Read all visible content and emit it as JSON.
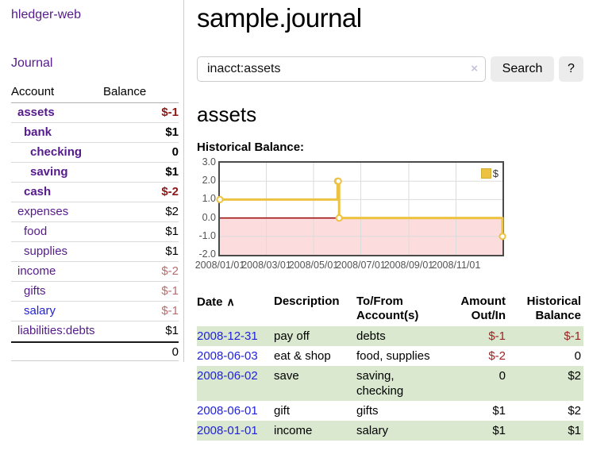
{
  "colors": {
    "accent_purple": "#551a8b",
    "link_blue": "#2222dd",
    "negative_strong": "#8b1717",
    "negative_faded": "#b56d6d",
    "row_green": "#d9e8ce",
    "series_yellow": "#edc240",
    "negative_region_pink": "#fcdcdc",
    "zero_line_red": "#990000"
  },
  "sidebar": {
    "brand": "hledger-web",
    "journal_link": "Journal",
    "accounts": {
      "col_account": "Account",
      "col_balance": "Balance",
      "rows": [
        {
          "name": "assets",
          "balance": "$-1",
          "indent": 1,
          "emph": true,
          "name_style": "purple",
          "bal_style": "neg"
        },
        {
          "name": "bank",
          "balance": "$1",
          "indent": 2,
          "emph": true,
          "name_style": "purple",
          "bal_style": "pos"
        },
        {
          "name": "checking",
          "balance": "0",
          "indent": 3,
          "emph": true,
          "name_style": "purple",
          "bal_style": "pos"
        },
        {
          "name": "saving",
          "balance": "$1",
          "indent": 3,
          "emph": true,
          "name_style": "purple",
          "bal_style": "pos"
        },
        {
          "name": "cash",
          "balance": "$-2",
          "indent": 2,
          "emph": true,
          "name_style": "purple",
          "bal_style": "neg"
        },
        {
          "name": "expenses",
          "balance": "$2",
          "indent": 1,
          "emph": false,
          "name_style": "purple",
          "bal_style": "pos"
        },
        {
          "name": "food",
          "balance": "$1",
          "indent": 2,
          "emph": false,
          "name_style": "purple",
          "bal_style": "pos"
        },
        {
          "name": "supplies",
          "balance": "$1",
          "indent": 2,
          "emph": false,
          "name_style": "purple",
          "bal_style": "pos"
        },
        {
          "name": "income",
          "balance": "$-2",
          "indent": 1,
          "emph": false,
          "name_style": "purple",
          "bal_style": "neg-faded"
        },
        {
          "name": "gifts",
          "balance": "$-1",
          "indent": 2,
          "emph": false,
          "name_style": "purple",
          "bal_style": "neg-faded"
        },
        {
          "name": "salary",
          "balance": "$-1",
          "indent": 2,
          "emph": false,
          "name_style": "blue",
          "bal_style": "neg-faded"
        },
        {
          "name": "liabilities:debts",
          "balance": "$1",
          "indent": 1,
          "emph": false,
          "name_style": "purple",
          "bal_style": "pos"
        }
      ],
      "total": "0"
    }
  },
  "main": {
    "title": "sample.journal",
    "search": {
      "value": "inacct:assets",
      "clear_icon": "×",
      "search_button": "Search",
      "help_button": "?"
    },
    "account_heading": "assets",
    "chart_heading": "Historical Balance:"
  },
  "chart_data": {
    "type": "line",
    "step": true,
    "title": "Historical Balance",
    "x": [
      "2008-01-01",
      "2008-06-01",
      "2008-06-02",
      "2008-06-03",
      "2008-12-31"
    ],
    "series": [
      {
        "name": "$",
        "values": [
          1,
          2,
          2,
          0,
          -1
        ],
        "color": "#edc240"
      }
    ],
    "xlim": [
      "2008-01-01",
      "2008-12-31"
    ],
    "ylim": [
      -2.0,
      3.0
    ],
    "yticks": [
      "3.0",
      "2.0",
      "1.0",
      "0.0",
      "-1.0",
      "-2.0"
    ],
    "xticks": [
      "2008/01/01",
      "2008/03/01",
      "2008/05/01",
      "2008/07/01",
      "2008/09/01",
      "2008/11/01"
    ],
    "grid": true,
    "legend_label": "$",
    "legend_position": "top-right",
    "negative_region_shaded": true
  },
  "register": {
    "headers": [
      "Date",
      "Description",
      "To/From Account(s)",
      "Amount Out/In",
      "Historical Balance"
    ],
    "sort_indicator": "∧",
    "rows": [
      {
        "date": "2008-12-31",
        "description": "pay off",
        "accounts": "debts",
        "amount": "$-1",
        "balance": "$-1",
        "amount_neg": true,
        "balance_neg": true,
        "green": true
      },
      {
        "date": "2008-06-03",
        "description": "eat & shop",
        "accounts": "food, supplies",
        "amount": "$-2",
        "balance": "0",
        "amount_neg": true,
        "balance_neg": false,
        "green": false
      },
      {
        "date": "2008-06-02",
        "description": "save",
        "accounts": "saving,\nchecking",
        "amount": "0",
        "balance": "$2",
        "amount_neg": false,
        "balance_neg": false,
        "green": true
      },
      {
        "date": "2008-06-01",
        "description": "gift",
        "accounts": "gifts",
        "amount": "$1",
        "balance": "$2",
        "amount_neg": false,
        "balance_neg": false,
        "green": false
      },
      {
        "date": "2008-01-01",
        "description": "income",
        "accounts": "salary",
        "amount": "$1",
        "balance": "$1",
        "amount_neg": false,
        "balance_neg": false,
        "green": true
      }
    ]
  }
}
